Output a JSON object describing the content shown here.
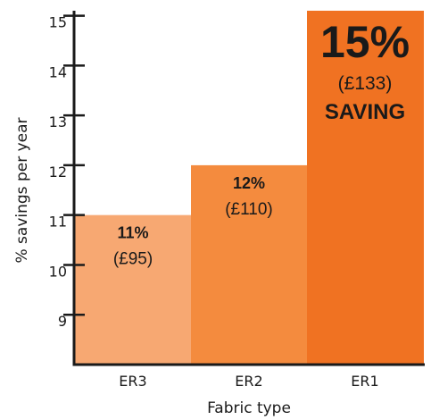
{
  "chart_data": {
    "type": "bar",
    "categories": [
      "ER3",
      "ER2",
      "ER1"
    ],
    "values": [
      11,
      12,
      15.1
    ],
    "value_labels": [
      "11%",
      "12%",
      "15%"
    ],
    "money_labels": [
      "(£95)",
      "(£110)",
      "(£133)"
    ],
    "extra_labels": [
      "",
      "",
      "SAVING"
    ],
    "bar_colors": [
      "#f7a872",
      "#f48b3e",
      "#f07222"
    ],
    "xlabel": "Fabric type",
    "ylabel": "% savings per year",
    "yticks": [
      9,
      10,
      11,
      12,
      13,
      14,
      15
    ],
    "ylim": [
      8,
      15.1
    ],
    "grid": false
  }
}
